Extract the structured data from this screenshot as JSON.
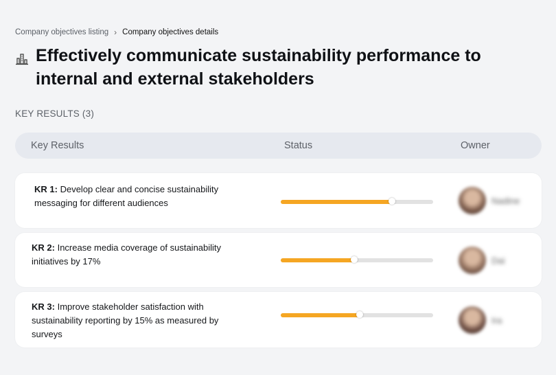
{
  "breadcrumb": {
    "parent": "Company objectives listing",
    "separator": "›",
    "current": "Company objectives details"
  },
  "objective": {
    "icon": "building-chart-icon",
    "title": "Effectively communicate sustainability performance to internal and external stakeholders"
  },
  "key_results_section": {
    "label": "KEY RESULTS (3)"
  },
  "table": {
    "columns": [
      "Key Results",
      "Status",
      "Owner"
    ],
    "rows": [
      {
        "id": "KR 1:",
        "text": "Develop clear and concise sustainability messaging for different audiences",
        "progress": 0.73,
        "owner": "Nadine",
        "avatar_color": "#7a5a4a"
      },
      {
        "id": "KR 2:",
        "text": "Increase media coverage of sustainability initiatives by 17%",
        "progress": 0.48,
        "owner": "Dai",
        "avatar_color": "#8b6a58"
      },
      {
        "id": "KR 3:",
        "text": "Improve stakeholder satisfaction with sustainability reporting by 15% as measured by surveys",
        "progress": 0.52,
        "owner": "Ira",
        "avatar_color": "#6e4f44"
      }
    ]
  },
  "colors": {
    "accent": "#f5a623",
    "track": "#e2e2e2",
    "header_bg": "#e6e9ef",
    "page_bg": "#f3f4f6"
  }
}
